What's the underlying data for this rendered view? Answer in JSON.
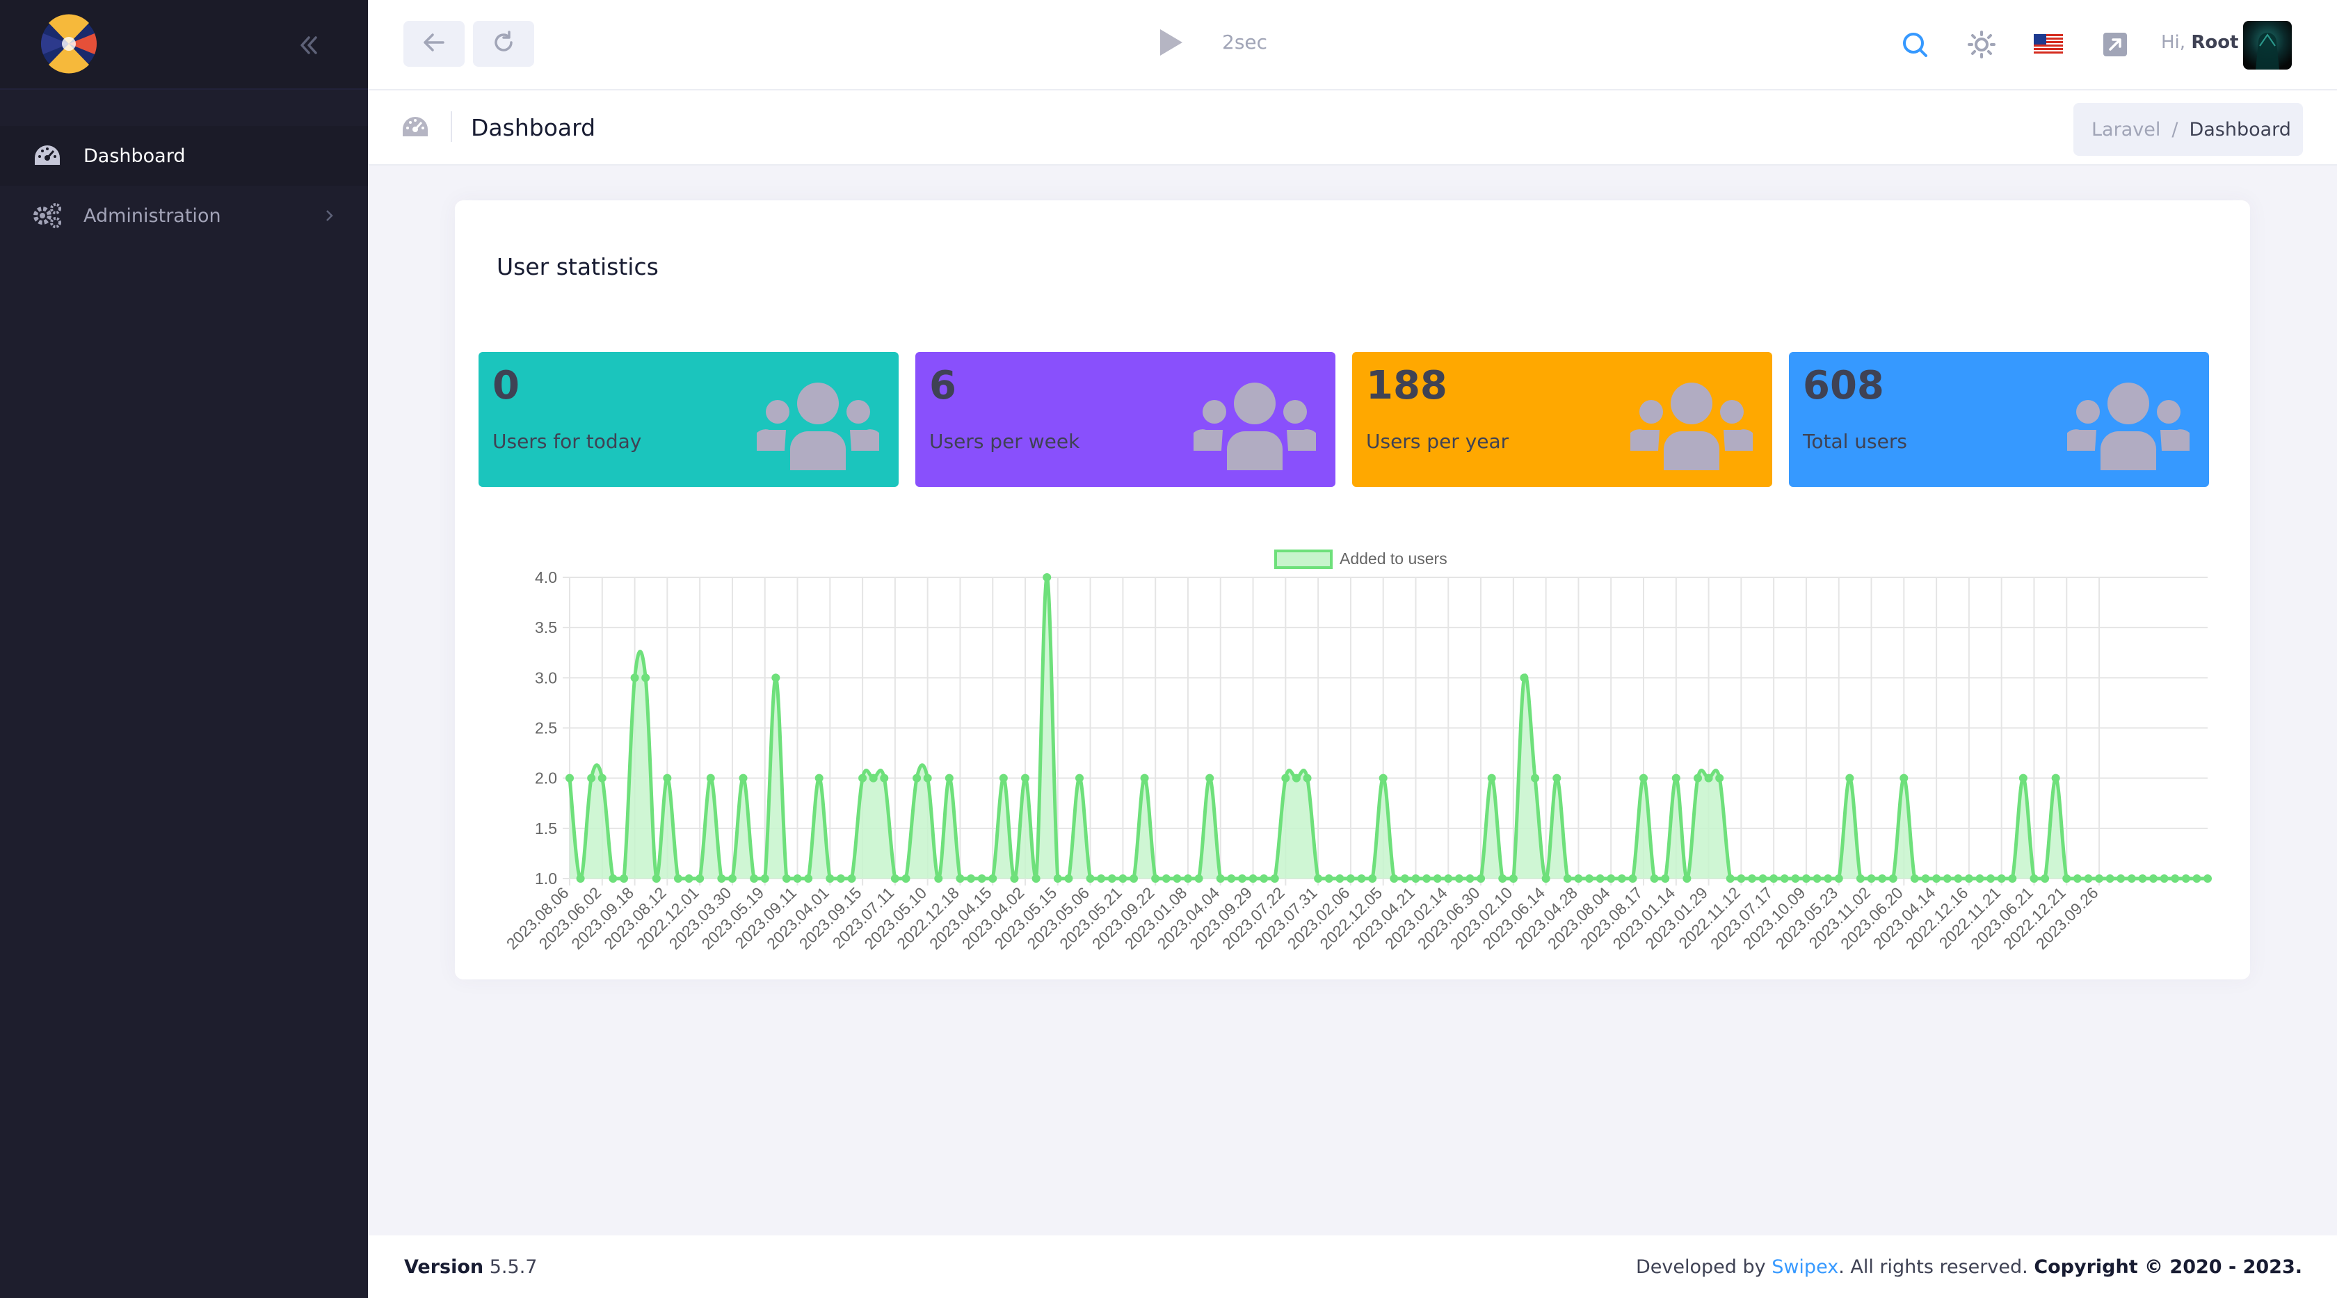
{
  "colors": {
    "sidebar_bg": "#1e1e2d",
    "teal": "#1bc5bd",
    "purple": "#8950fc",
    "orange": "#ffa800",
    "blue": "#3699ff",
    "chart_line": "#6ee07b",
    "chart_fill": "#c7f4cc"
  },
  "sidebar": {
    "logo_icon": "app-logo-icon",
    "collapse_icon": "double-chevron-left-icon",
    "items": [
      {
        "label": "Dashboard",
        "icon": "speedometer-icon",
        "active": true
      },
      {
        "label": "Administration",
        "icon": "gears-icon",
        "active": false
      }
    ]
  },
  "topbar": {
    "back_icon": "arrow-left-icon",
    "refresh_icon": "refresh-icon",
    "play_icon": "play-icon",
    "interval": "2sec",
    "search_icon": "search-icon",
    "theme_icon": "sun-icon",
    "language_icon": "us-flag-icon",
    "external_icon": "external-link-icon",
    "greeting": "Hi,",
    "username": "Root"
  },
  "subheader": {
    "icon": "speedometer-icon",
    "title": "Dashboard",
    "breadcrumb": {
      "root": "Laravel",
      "separator": "/",
      "current": "Dashboard"
    }
  },
  "card": {
    "title": "User statistics",
    "stats": [
      {
        "value": "0",
        "label": "Users for today",
        "color": "#1bc5bd"
      },
      {
        "value": "6",
        "label": "Users per week",
        "color": "#8950fc"
      },
      {
        "value": "188",
        "label": "Users per year",
        "color": "#ffa800"
      },
      {
        "value": "608",
        "label": "Total users",
        "color": "#3699ff"
      }
    ]
  },
  "chart_data": {
    "type": "area",
    "legend": "top-center",
    "series": [
      {
        "name": "Added to users",
        "values": [
          2,
          1,
          2,
          2,
          1,
          1,
          3,
          3,
          1,
          2,
          1,
          1,
          1,
          2,
          1,
          1,
          2,
          1,
          1,
          3,
          1,
          1,
          1,
          2,
          1,
          1,
          1,
          2,
          2,
          2,
          1,
          1,
          2,
          2,
          1,
          2,
          1,
          1,
          1,
          1,
          2,
          1,
          2,
          1,
          4,
          1,
          1,
          2,
          1,
          1,
          1,
          1,
          1,
          2,
          1,
          1,
          1,
          1,
          1,
          2,
          1,
          1,
          1,
          1,
          1,
          1,
          2,
          2,
          2,
          1,
          1,
          1,
          1,
          1,
          1,
          2,
          1,
          1,
          1,
          1,
          1,
          1,
          1,
          1,
          1,
          2,
          1,
          1,
          3,
          2,
          1,
          2,
          1,
          1,
          1,
          1,
          1,
          1,
          1,
          2,
          1,
          1,
          2,
          1,
          2,
          2,
          2,
          1,
          1,
          1,
          1,
          1,
          1,
          1,
          1,
          1,
          1,
          1,
          2,
          1,
          1,
          1,
          1,
          2,
          1,
          1,
          1,
          1,
          1,
          1,
          1,
          1,
          1,
          1,
          2,
          1,
          1,
          2,
          1,
          1,
          1,
          1,
          1,
          1,
          1,
          1,
          1,
          1,
          1,
          1,
          1,
          1
        ]
      }
    ],
    "x_tick_labels": [
      "2023.08.06",
      "2023.06.02",
      "2023.09.18",
      "2023.08.12",
      "2022.12.01",
      "2023.03.30",
      "2023.05.19",
      "2023.09.11",
      "2023.04.01",
      "2023.09.15",
      "2023.07.11",
      "2023.05.10",
      "2022.12.18",
      "2023.04.15",
      "2023.04.02",
      "2023.05.15",
      "2023.05.06",
      "2023.05.21",
      "2023.09.22",
      "2023.01.08",
      "2023.04.04",
      "2023.09.29",
      "2023.07.22",
      "2023.07.31",
      "2023.02.06",
      "2022.12.05",
      "2023.04.21",
      "2023.02.14",
      "2023.06.30",
      "2023.02.10",
      "2023.06.14",
      "2023.04.28",
      "2023.08.04",
      "2023.08.17",
      "2023.01.14",
      "2023.01.29",
      "2022.11.12",
      "2023.07.17",
      "2023.10.09",
      "2023.05.23",
      "2023.11.02",
      "2023.06.20",
      "2023.04.14",
      "2022.12.16",
      "2022.11.21",
      "2023.06.21",
      "2022.12.21",
      "2023.09.26"
    ],
    "y_ticks": [
      "1.0",
      "1.5",
      "2.0",
      "2.5",
      "3.0",
      "3.5",
      "4.0"
    ],
    "ylim": [
      1,
      4
    ]
  },
  "footer": {
    "version_label": "Version",
    "version": "5.5.7",
    "developed_by": "Developed by",
    "company": "Swipex",
    "rights": ". All rights reserved.",
    "copyright": "Copyright © 2020 - 2023."
  }
}
